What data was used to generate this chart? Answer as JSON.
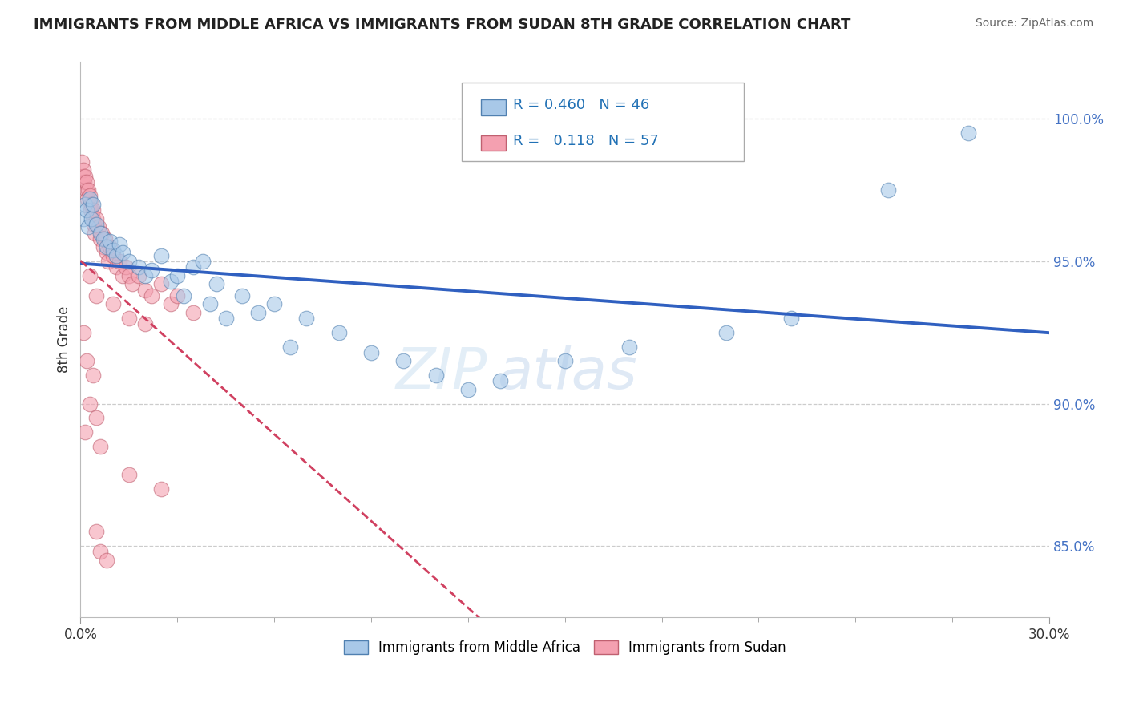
{
  "title": "IMMIGRANTS FROM MIDDLE AFRICA VS IMMIGRANTS FROM SUDAN 8TH GRADE CORRELATION CHART",
  "source": "Source: ZipAtlas.com",
  "ylabel": "8th Grade",
  "xlim": [
    0.0,
    30.0
  ],
  "ylim": [
    82.5,
    102.0
  ],
  "y_ticks": [
    85.0,
    90.0,
    95.0,
    100.0
  ],
  "blue_color": "#a8c8e8",
  "pink_color": "#f4a0b0",
  "blue_line_color": "#3060c0",
  "pink_line_color": "#d04060",
  "R_blue": 0.46,
  "N_blue": 46,
  "R_pink": 0.118,
  "N_pink": 57,
  "legend_label_blue": "Immigrants from Middle Africa",
  "legend_label_pink": "Immigrants from Sudan",
  "watermark_zip": "ZIP",
  "watermark_atlas": "atlas",
  "blue_scatter": [
    [
      0.1,
      96.5
    ],
    [
      0.15,
      97.0
    ],
    [
      0.2,
      96.8
    ],
    [
      0.25,
      96.2
    ],
    [
      0.3,
      97.2
    ],
    [
      0.35,
      96.5
    ],
    [
      0.4,
      97.0
    ],
    [
      0.5,
      96.3
    ],
    [
      0.6,
      96.0
    ],
    [
      0.7,
      95.8
    ],
    [
      0.8,
      95.5
    ],
    [
      0.9,
      95.7
    ],
    [
      1.0,
      95.4
    ],
    [
      1.1,
      95.2
    ],
    [
      1.2,
      95.6
    ],
    [
      1.3,
      95.3
    ],
    [
      1.5,
      95.0
    ],
    [
      1.8,
      94.8
    ],
    [
      2.0,
      94.5
    ],
    [
      2.2,
      94.7
    ],
    [
      2.5,
      95.2
    ],
    [
      2.8,
      94.3
    ],
    [
      3.0,
      94.5
    ],
    [
      3.2,
      93.8
    ],
    [
      3.5,
      94.8
    ],
    [
      3.8,
      95.0
    ],
    [
      4.0,
      93.5
    ],
    [
      4.2,
      94.2
    ],
    [
      4.5,
      93.0
    ],
    [
      5.0,
      93.8
    ],
    [
      5.5,
      93.2
    ],
    [
      6.0,
      93.5
    ],
    [
      6.5,
      92.0
    ],
    [
      7.0,
      93.0
    ],
    [
      8.0,
      92.5
    ],
    [
      9.0,
      91.8
    ],
    [
      10.0,
      91.5
    ],
    [
      11.0,
      91.0
    ],
    [
      12.0,
      90.5
    ],
    [
      13.0,
      90.8
    ],
    [
      15.0,
      91.5
    ],
    [
      17.0,
      92.0
    ],
    [
      20.0,
      92.5
    ],
    [
      22.0,
      93.0
    ],
    [
      25.0,
      97.5
    ],
    [
      27.5,
      99.5
    ]
  ],
  "pink_scatter": [
    [
      0.05,
      98.5
    ],
    [
      0.08,
      98.0
    ],
    [
      0.1,
      98.2
    ],
    [
      0.12,
      97.8
    ],
    [
      0.15,
      98.0
    ],
    [
      0.18,
      97.5
    ],
    [
      0.2,
      97.8
    ],
    [
      0.22,
      97.2
    ],
    [
      0.25,
      97.5
    ],
    [
      0.28,
      97.0
    ],
    [
      0.3,
      97.3
    ],
    [
      0.32,
      96.8
    ],
    [
      0.35,
      97.0
    ],
    [
      0.38,
      96.5
    ],
    [
      0.4,
      96.8
    ],
    [
      0.42,
      96.3
    ],
    [
      0.45,
      96.0
    ],
    [
      0.5,
      96.5
    ],
    [
      0.55,
      96.2
    ],
    [
      0.6,
      95.8
    ],
    [
      0.65,
      96.0
    ],
    [
      0.7,
      95.5
    ],
    [
      0.75,
      95.8
    ],
    [
      0.8,
      95.3
    ],
    [
      0.85,
      95.0
    ],
    [
      0.9,
      95.5
    ],
    [
      1.0,
      95.2
    ],
    [
      1.1,
      94.8
    ],
    [
      1.2,
      95.0
    ],
    [
      1.3,
      94.5
    ],
    [
      1.4,
      94.8
    ],
    [
      1.5,
      94.5
    ],
    [
      1.6,
      94.2
    ],
    [
      1.8,
      94.5
    ],
    [
      2.0,
      94.0
    ],
    [
      2.2,
      93.8
    ],
    [
      2.5,
      94.2
    ],
    [
      2.8,
      93.5
    ],
    [
      3.0,
      93.8
    ],
    [
      3.5,
      93.2
    ],
    [
      0.3,
      94.5
    ],
    [
      0.5,
      93.8
    ],
    [
      1.0,
      93.5
    ],
    [
      1.5,
      93.0
    ],
    [
      2.0,
      92.8
    ],
    [
      0.1,
      92.5
    ],
    [
      0.2,
      91.5
    ],
    [
      0.4,
      91.0
    ],
    [
      0.3,
      90.0
    ],
    [
      0.5,
      89.5
    ],
    [
      0.15,
      89.0
    ],
    [
      0.6,
      88.5
    ],
    [
      1.5,
      87.5
    ],
    [
      2.5,
      87.0
    ],
    [
      0.5,
      85.5
    ],
    [
      0.6,
      84.8
    ],
    [
      0.8,
      84.5
    ]
  ]
}
